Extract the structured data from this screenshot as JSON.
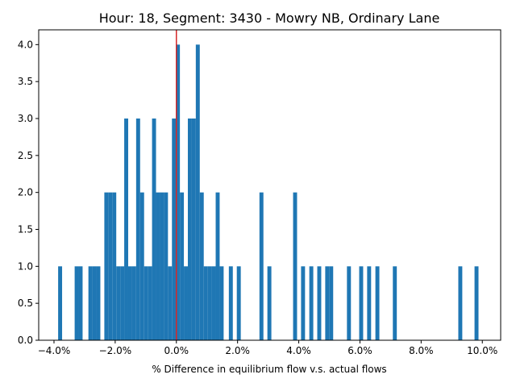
{
  "chart_data": {
    "type": "histogram",
    "title": "Hour: 18, Segment: 3430 - Mowry NB, Ordinary Lane",
    "xlabel": "% Difference in equilibrium flow v.s. actual flows",
    "ylabel": "",
    "xlim": [
      -4.5,
      10.6
    ],
    "ylim": [
      0,
      4.2
    ],
    "bin_width": 0.13,
    "x_ticks": [
      -4,
      -2,
      0,
      2,
      4,
      6,
      8,
      10
    ],
    "x_tick_labels": [
      "−4.0%",
      "−2.0%",
      "0.0%",
      "2.0%",
      "4.0%",
      "6.0%",
      "8.0%",
      "10.0%"
    ],
    "y_ticks": [
      0,
      0.5,
      1,
      1.5,
      2,
      2.5,
      3,
      3.5,
      4
    ],
    "y_tick_labels": [
      "0.0",
      "0.5",
      "1.0",
      "1.5",
      "2.0",
      "2.5",
      "3.0",
      "3.5",
      "4.0"
    ],
    "bar_color": "#1f77b4",
    "reference_line": {
      "x": 0.0,
      "color": "#d62728"
    },
    "grid": false,
    "bins": [
      {
        "x": -3.8,
        "count": 1
      },
      {
        "x": -3.26,
        "count": 1
      },
      {
        "x": -3.13,
        "count": 1
      },
      {
        "x": -2.81,
        "count": 1
      },
      {
        "x": -2.68,
        "count": 1
      },
      {
        "x": -2.55,
        "count": 1
      },
      {
        "x": -2.29,
        "count": 2
      },
      {
        "x": -2.16,
        "count": 2
      },
      {
        "x": -2.03,
        "count": 2
      },
      {
        "x": -1.9,
        "count": 1
      },
      {
        "x": -1.77,
        "count": 1
      },
      {
        "x": -1.64,
        "count": 3
      },
      {
        "x": -1.51,
        "count": 1
      },
      {
        "x": -1.38,
        "count": 1
      },
      {
        "x": -1.25,
        "count": 3
      },
      {
        "x": -1.12,
        "count": 2
      },
      {
        "x": -0.99,
        "count": 1
      },
      {
        "x": -0.86,
        "count": 1
      },
      {
        "x": -0.73,
        "count": 3
      },
      {
        "x": -0.6,
        "count": 2
      },
      {
        "x": -0.47,
        "count": 2
      },
      {
        "x": -0.34,
        "count": 2
      },
      {
        "x": -0.21,
        "count": 1
      },
      {
        "x": -0.08,
        "count": 3
      },
      {
        "x": 0.05,
        "count": 4
      },
      {
        "x": 0.18,
        "count": 2
      },
      {
        "x": 0.31,
        "count": 1
      },
      {
        "x": 0.44,
        "count": 3
      },
      {
        "x": 0.57,
        "count": 3
      },
      {
        "x": 0.7,
        "count": 4
      },
      {
        "x": 0.83,
        "count": 2
      },
      {
        "x": 0.96,
        "count": 1
      },
      {
        "x": 1.09,
        "count": 1
      },
      {
        "x": 1.22,
        "count": 1
      },
      {
        "x": 1.35,
        "count": 2
      },
      {
        "x": 1.48,
        "count": 1
      },
      {
        "x": 1.78,
        "count": 1
      },
      {
        "x": 2.04,
        "count": 1
      },
      {
        "x": 2.78,
        "count": 2
      },
      {
        "x": 3.04,
        "count": 1
      },
      {
        "x": 3.88,
        "count": 2
      },
      {
        "x": 4.14,
        "count": 1
      },
      {
        "x": 4.41,
        "count": 1
      },
      {
        "x": 4.67,
        "count": 1
      },
      {
        "x": 4.93,
        "count": 1
      },
      {
        "x": 5.06,
        "count": 1
      },
      {
        "x": 5.64,
        "count": 1
      },
      {
        "x": 6.04,
        "count": 1
      },
      {
        "x": 6.3,
        "count": 1
      },
      {
        "x": 6.57,
        "count": 1
      },
      {
        "x": 7.14,
        "count": 1
      },
      {
        "x": 9.28,
        "count": 1
      },
      {
        "x": 9.81,
        "count": 1
      }
    ]
  }
}
